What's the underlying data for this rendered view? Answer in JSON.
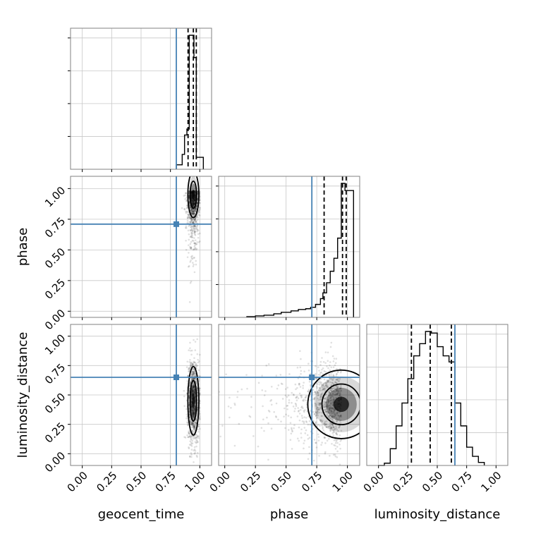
{
  "chart_data": {
    "type": "corner",
    "parameters": [
      "geocent_time",
      "phase",
      "luminosity_distance"
    ],
    "axis_labels": {
      "x": [
        "geocent_time",
        "phase",
        "luminosity_distance"
      ],
      "y": [
        "phase",
        "luminosity_distance"
      ]
    },
    "xlim": [
      [
        -0.1,
        1.1
      ],
      [
        -0.05,
        1.1
      ],
      [
        -0.1,
        1.1
      ]
    ],
    "ylim_2d": {
      "phase": [
        -0.05,
        1.1
      ],
      "luminosity_distance": [
        -0.1,
        1.1
      ]
    },
    "ticks": [
      0.0,
      0.25,
      0.5,
      0.75,
      1.0
    ],
    "tick_labels": [
      "0.00",
      "0.25",
      "0.50",
      "0.75",
      "1.00"
    ],
    "truths": {
      "geocent_time": 0.8,
      "phase": 0.71,
      "luminosity_distance": 0.65
    },
    "quantiles_dashed": {
      "geocent_time": [
        0.9,
        0.945,
        0.97
      ],
      "phase": [
        0.81,
        0.96,
        0.99
      ],
      "luminosity_distance": [
        0.28,
        0.44,
        0.62
      ]
    },
    "histograms": {
      "geocent_time": {
        "edges": [
          0.8,
          0.85,
          0.87,
          0.89,
          0.91,
          0.93,
          0.95,
          0.97,
          0.99,
          1.03
        ],
        "counts": [
          0.03,
          0.1,
          0.23,
          0.27,
          0.9,
          0.9,
          0.75,
          0.08,
          0.08
        ]
      },
      "phase": {
        "edges": [
          0.18,
          0.25,
          0.32,
          0.4,
          0.46,
          0.54,
          0.6,
          0.66,
          0.7,
          0.74,
          0.78,
          0.8,
          0.83,
          0.86,
          0.89,
          0.92,
          0.95,
          0.98,
          1.01,
          1.05
        ],
        "counts": [
          0.005,
          0.01,
          0.015,
          0.025,
          0.035,
          0.045,
          0.055,
          0.06,
          0.07,
          0.09,
          0.13,
          0.17,
          0.24,
          0.32,
          0.41,
          0.55,
          0.93,
          0.88,
          0.88
        ]
      },
      "luminosity_distance": {
        "edges": [
          0.0,
          0.05,
          0.1,
          0.15,
          0.2,
          0.25,
          0.3,
          0.35,
          0.4,
          0.45,
          0.5,
          0.55,
          0.6,
          0.65,
          0.7,
          0.75,
          0.8,
          0.85,
          0.9
        ],
        "counts": [
          0.0,
          0.015,
          0.11,
          0.26,
          0.41,
          0.57,
          0.72,
          0.8,
          0.88,
          0.87,
          0.78,
          0.72,
          0.68,
          0.41,
          0.26,
          0.12,
          0.06,
          0.02
        ]
      }
    },
    "panels_2d": [
      {
        "x": "geocent_time",
        "y": "phase",
        "center": [
          0.945,
          0.98
        ],
        "spread": [
          0.025,
          0.12
        ]
      },
      {
        "x": "geocent_time",
        "y": "luminosity_distance",
        "center": [
          0.945,
          0.45
        ],
        "spread": [
          0.025,
          0.18
        ]
      },
      {
        "x": "phase",
        "y": "luminosity_distance",
        "center": [
          0.95,
          0.42
        ],
        "spread": [
          0.15,
          0.18
        ]
      }
    ],
    "colors": {
      "truth": "#4682b4",
      "hist": "#000000",
      "grid": "#c8c8c8"
    }
  }
}
